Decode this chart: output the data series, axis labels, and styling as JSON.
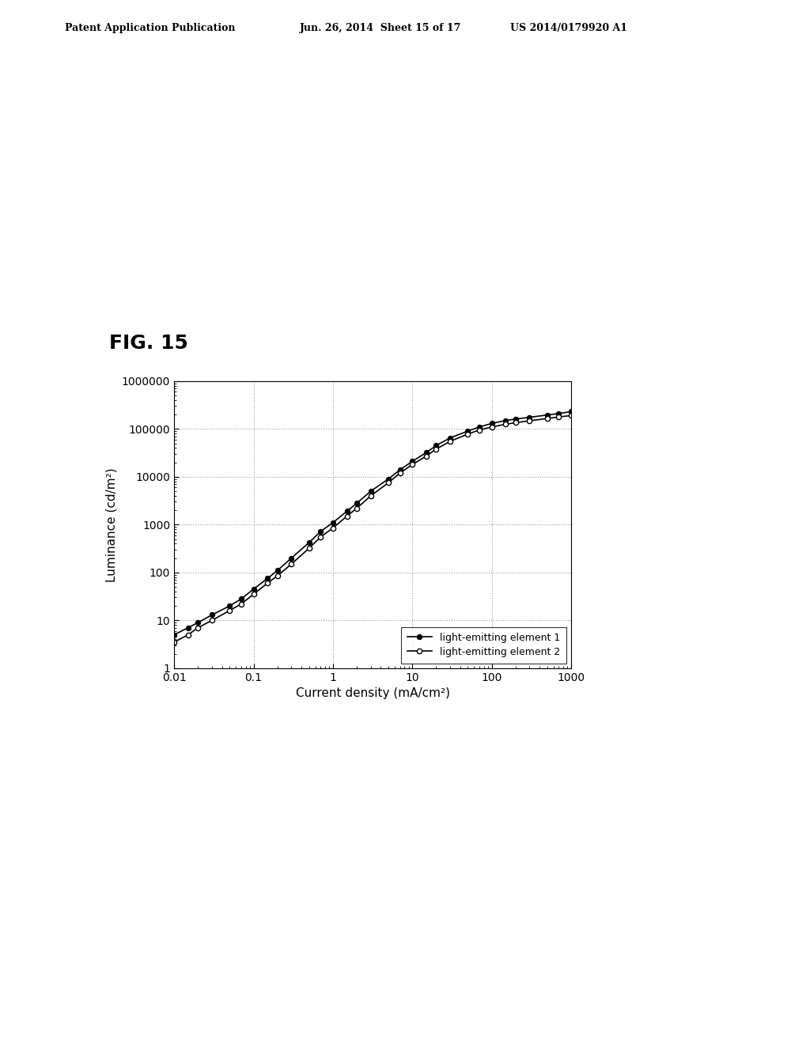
{
  "title": "FIG. 15",
  "xlabel": "Current density (mA/cm²)",
  "ylabel": "Luminance (cd/m²)",
  "header_left": "Patent Application Publication",
  "header_mid": "Jun. 26, 2014  Sheet 15 of 17",
  "header_right": "US 2014/0179920 A1",
  "xticks": [
    0.01,
    0.1,
    1,
    10,
    100,
    1000
  ],
  "yticks": [
    1,
    10,
    100,
    1000,
    10000,
    100000,
    1000000
  ],
  "legend_labels": [
    "light-emitting element 1",
    "light-emitting element 2"
  ],
  "series1_x": [
    0.01,
    0.015,
    0.02,
    0.03,
    0.05,
    0.07,
    0.1,
    0.15,
    0.2,
    0.3,
    0.5,
    0.7,
    1.0,
    1.5,
    2.0,
    3.0,
    5.0,
    7.0,
    10.0,
    15.0,
    20.0,
    30.0,
    50.0,
    70.0,
    100.0,
    150.0,
    200.0,
    300.0,
    500.0,
    700.0,
    1000.0
  ],
  "series1_y": [
    5.0,
    7.0,
    9.0,
    13.0,
    20.0,
    28.0,
    45.0,
    75.0,
    110.0,
    200.0,
    420.0,
    720.0,
    1100.0,
    1900.0,
    2800.0,
    5000.0,
    9000.0,
    14000.0,
    21000.0,
    32000.0,
    45000.0,
    65000.0,
    90000.0,
    110000.0,
    130000.0,
    150000.0,
    160000.0,
    175000.0,
    195000.0,
    210000.0,
    230000.0
  ],
  "series2_x": [
    0.01,
    0.015,
    0.02,
    0.03,
    0.05,
    0.07,
    0.1,
    0.15,
    0.2,
    0.3,
    0.5,
    0.7,
    1.0,
    1.5,
    2.0,
    3.0,
    5.0,
    7.0,
    10.0,
    15.0,
    20.0,
    30.0,
    50.0,
    70.0,
    100.0,
    150.0,
    200.0,
    300.0,
    500.0,
    700.0,
    1000.0
  ],
  "series2_y": [
    3.5,
    5.0,
    7.0,
    10.0,
    16.0,
    22.0,
    35.0,
    60.0,
    85.0,
    150.0,
    320.0,
    550.0,
    850.0,
    1500.0,
    2200.0,
    4000.0,
    7500.0,
    12000.0,
    18000.0,
    27000.0,
    38000.0,
    55000.0,
    78000.0,
    95000.0,
    110000.0,
    125000.0,
    135000.0,
    148000.0,
    165000.0,
    178000.0,
    190000.0
  ],
  "line_color": "#000000",
  "background_color": "#ffffff",
  "grid_color": "#888888",
  "header_fontsize": 9,
  "title_fontsize": 18,
  "axis_label_fontsize": 11,
  "tick_fontsize": 10,
  "legend_fontsize": 9
}
